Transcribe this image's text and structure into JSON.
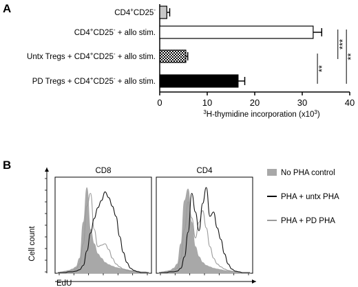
{
  "panel_a": {
    "letter": "A"
  },
  "panel_b": {
    "letter": "B"
  },
  "chart_data": [
    {
      "type": "bar",
      "orientation": "horizontal",
      "categories": [
        {
          "main": "CD4",
          "sup1": "+",
          "mid": "CD25",
          "sup2": "-",
          "tail": ""
        },
        {
          "main": "CD4",
          "sup1": "+",
          "mid": "CD25",
          "sup2": "-",
          "tail": " + allo stim."
        },
        {
          "main": "Untx Tregs + CD4",
          "sup1": "+",
          "mid": "CD25",
          "sup2": "-",
          "tail": " + allo stim."
        },
        {
          "main": "PD Tregs + CD4",
          "sup1": "+",
          "mid": "CD25",
          "sup2": "-",
          "tail": " + allo stim."
        }
      ],
      "values": [
        1.5,
        32.3,
        5.5,
        16.5
      ],
      "errors": [
        0.6,
        1.8,
        0.4,
        1.4
      ],
      "fills": [
        "#c8c8c8",
        "#ffffff",
        "checker",
        "#000000"
      ],
      "xlim": [
        0,
        40
      ],
      "xticks": [
        "0",
        "10",
        "20",
        "30",
        "40"
      ],
      "xlabel": {
        "pre": "",
        "sup": "3",
        "main": "H-thymidine incorporation (x10",
        "sup2": "3",
        "post": ")"
      },
      "significance": [
        {
          "from": 3,
          "to": 2,
          "label": "**",
          "x": 33.2
        },
        {
          "from": 1,
          "to": 2,
          "label": "***",
          "x": 37.5
        },
        {
          "from": 1,
          "to": 3,
          "label": "**",
          "x": 39.3
        }
      ]
    },
    {
      "type": "area",
      "subtype": "flow-histogram",
      "panels": [
        "CD8",
        "CD4"
      ],
      "xlabel": "EdU",
      "ylabel": "Cell count",
      "legend": [
        {
          "label": "No PHA control",
          "style": "filled",
          "color": "#a8a8a8"
        },
        {
          "label": "PHA + untx PHA",
          "style": "line",
          "color": "#000000"
        },
        {
          "label": "PHA + PD PHA",
          "style": "line",
          "color": "#9a9a9a"
        }
      ],
      "series": {
        "CD8": {
          "no_pha": [
            0,
            1,
            2,
            3,
            5,
            8,
            20,
            70,
            118,
            60,
            40,
            26,
            20,
            14,
            11,
            9,
            7,
            6,
            5,
            4,
            3,
            2,
            2,
            1,
            1,
            0
          ],
          "pd": [
            0,
            0,
            1,
            2,
            3,
            5,
            12,
            40,
            92,
            110,
            60,
            36,
            38,
            40,
            32,
            20,
            12,
            8,
            5,
            3,
            2,
            1,
            1,
            0,
            0,
            0
          ],
          "untx": [
            0,
            0,
            0,
            1,
            1,
            2,
            4,
            10,
            30,
            55,
            75,
            90,
            100,
            112,
            104,
            92,
            78,
            50,
            28,
            14,
            6,
            3,
            1,
            0,
            0,
            0
          ]
        },
        "CD4": {
          "no_pha": [
            0,
            1,
            2,
            3,
            6,
            12,
            40,
            100,
            116,
            70,
            36,
            22,
            14,
            10,
            8,
            6,
            5,
            4,
            3,
            2,
            2,
            1,
            1,
            0,
            0,
            0
          ],
          "pd": [
            0,
            0,
            1,
            2,
            3,
            6,
            20,
            60,
            98,
            76,
            48,
            70,
            86,
            62,
            36,
            20,
            12,
            8,
            5,
            3,
            2,
            1,
            0,
            0,
            0,
            0
          ],
          "untx": [
            0,
            0,
            0,
            1,
            1,
            2,
            6,
            22,
            56,
            110,
            84,
            58,
            96,
            118,
            78,
            84,
            62,
            46,
            26,
            12,
            5,
            2,
            1,
            0,
            0,
            0
          ]
        }
      }
    }
  ]
}
